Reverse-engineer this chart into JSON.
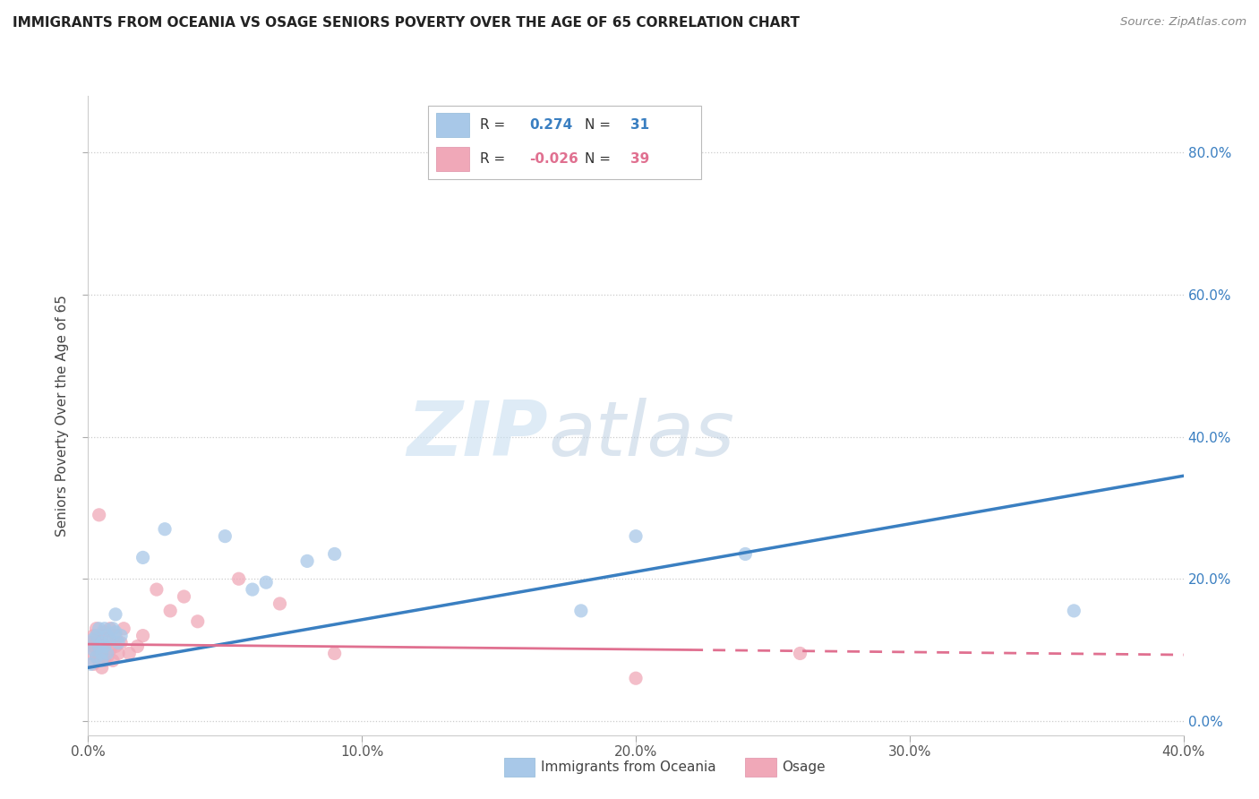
{
  "title": "IMMIGRANTS FROM OCEANIA VS OSAGE SENIORS POVERTY OVER THE AGE OF 65 CORRELATION CHART",
  "source": "Source: ZipAtlas.com",
  "ylabel": "Seniors Poverty Over the Age of 65",
  "xlim": [
    0.0,
    0.4
  ],
  "ylim": [
    -0.02,
    0.88
  ],
  "xticks": [
    0.0,
    0.1,
    0.2,
    0.3,
    0.4
  ],
  "xtick_labels": [
    "0.0%",
    "10.0%",
    "20.0%",
    "30.0%",
    "40.0%"
  ],
  "yticks": [
    0.0,
    0.2,
    0.4,
    0.6,
    0.8
  ],
  "ytick_labels": [
    "0.0%",
    "20.0%",
    "40.0%",
    "60.0%",
    "80.0%"
  ],
  "legend_blue_label": "Immigrants from Oceania",
  "legend_pink_label": "Osage",
  "R_blue": 0.274,
  "N_blue": 31,
  "R_pink": -0.026,
  "N_pink": 39,
  "blue_color": "#a8c8e8",
  "pink_color": "#f0a8b8",
  "line_blue_color": "#3a7fc1",
  "line_pink_color": "#e07090",
  "watermark_zip": "ZIP",
  "watermark_atlas": "atlas",
  "blue_scatter_x": [
    0.001,
    0.002,
    0.002,
    0.003,
    0.003,
    0.004,
    0.004,
    0.005,
    0.005,
    0.005,
    0.006,
    0.006,
    0.007,
    0.007,
    0.008,
    0.009,
    0.01,
    0.01,
    0.011,
    0.012,
    0.02,
    0.028,
    0.05,
    0.06,
    0.065,
    0.08,
    0.09,
    0.18,
    0.2,
    0.24,
    0.36
  ],
  "blue_scatter_y": [
    0.08,
    0.1,
    0.115,
    0.09,
    0.12,
    0.13,
    0.105,
    0.095,
    0.11,
    0.085,
    0.13,
    0.105,
    0.12,
    0.095,
    0.115,
    0.13,
    0.15,
    0.125,
    0.11,
    0.12,
    0.23,
    0.27,
    0.26,
    0.185,
    0.195,
    0.225,
    0.235,
    0.155,
    0.26,
    0.235,
    0.155
  ],
  "pink_scatter_x": [
    0.001,
    0.001,
    0.002,
    0.002,
    0.002,
    0.003,
    0.003,
    0.003,
    0.004,
    0.004,
    0.004,
    0.005,
    0.005,
    0.005,
    0.006,
    0.006,
    0.006,
    0.007,
    0.007,
    0.008,
    0.008,
    0.009,
    0.01,
    0.01,
    0.011,
    0.012,
    0.013,
    0.015,
    0.018,
    0.02,
    0.025,
    0.03,
    0.035,
    0.04,
    0.055,
    0.07,
    0.09,
    0.2,
    0.26
  ],
  "pink_scatter_y": [
    0.095,
    0.11,
    0.08,
    0.105,
    0.12,
    0.09,
    0.115,
    0.13,
    0.085,
    0.1,
    0.29,
    0.075,
    0.095,
    0.12,
    0.085,
    0.105,
    0.125,
    0.09,
    0.115,
    0.1,
    0.13,
    0.085,
    0.105,
    0.12,
    0.095,
    0.11,
    0.13,
    0.095,
    0.105,
    0.12,
    0.185,
    0.155,
    0.175,
    0.14,
    0.2,
    0.165,
    0.095,
    0.06,
    0.095
  ],
  "blue_line_x0": 0.0,
  "blue_line_y0": 0.075,
  "blue_line_x1": 0.4,
  "blue_line_y1": 0.345,
  "pink_line_solid_x0": 0.0,
  "pink_line_solid_y0": 0.108,
  "pink_line_solid_x1": 0.22,
  "pink_line_solid_y1": 0.1,
  "pink_line_dash_x0": 0.22,
  "pink_line_dash_y0": 0.1,
  "pink_line_dash_x1": 0.4,
  "pink_line_dash_y1": 0.093
}
